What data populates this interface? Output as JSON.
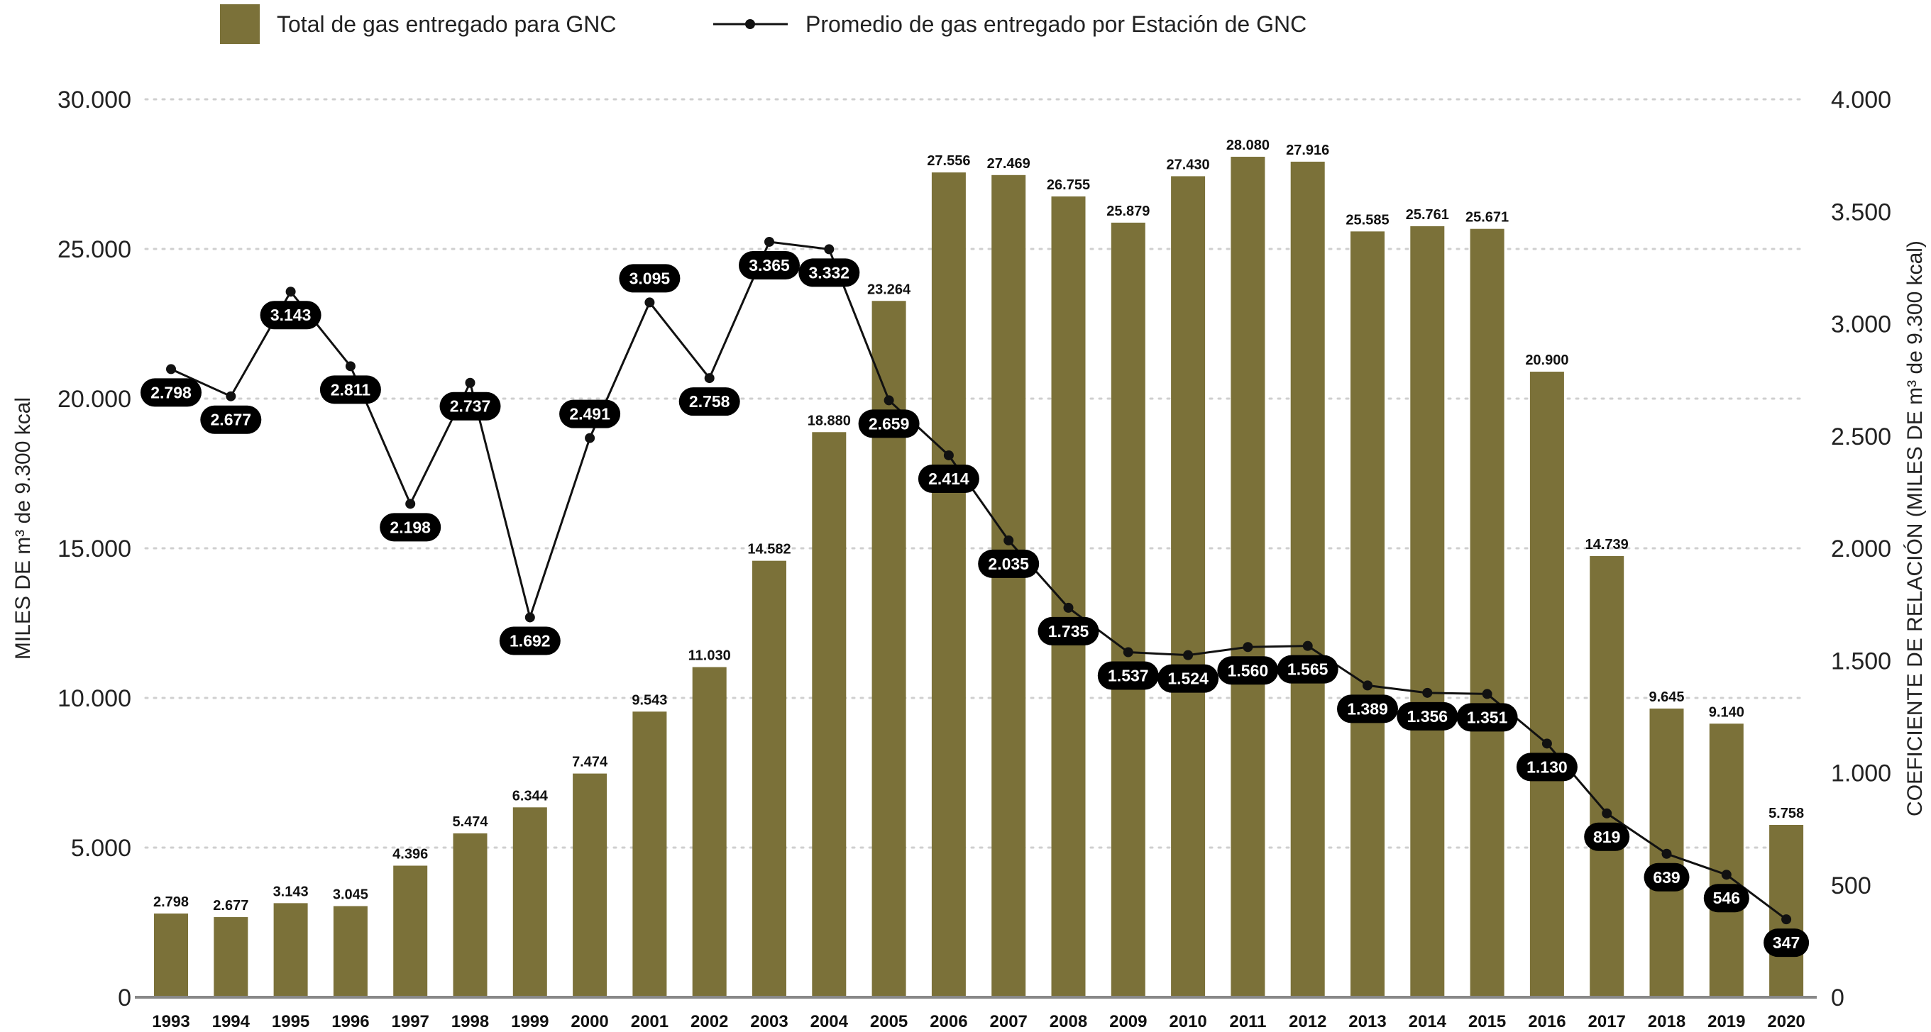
{
  "colors": {
    "bar": "#7b7139",
    "line": "#111111",
    "pill": "#000000",
    "grid": "#cfcfcf",
    "axis": "#888888"
  },
  "legend": {
    "bars_label": "Total de gas entregado para GNC",
    "line_label": "Promedio de gas entregado por Estación de GNC",
    "placement": "top"
  },
  "chart_data": {
    "type": "bar",
    "categories": [
      "1993",
      "1994",
      "1995",
      "1996",
      "1997",
      "1998",
      "1999",
      "2000",
      "2001",
      "2002",
      "2003",
      "2004",
      "2005",
      "2006",
      "2007",
      "2008",
      "2009",
      "2010",
      "2011",
      "2012",
      "2013",
      "2014",
      "2015",
      "2016",
      "2017",
      "2018",
      "2019",
      "2020"
    ],
    "series": [
      {
        "name": "Total de gas entregado para GNC",
        "type": "bar",
        "axis": "left",
        "values": [
          2798,
          2677,
          3143,
          3045,
          4396,
          5474,
          6344,
          7474,
          9543,
          11030,
          14582,
          18880,
          23264,
          27556,
          27469,
          26755,
          25879,
          27430,
          28080,
          27916,
          25585,
          25761,
          25671,
          20900,
          14739,
          9645,
          9140,
          5758
        ],
        "labels": [
          "2.798",
          "2.677",
          "3.143",
          "3.045",
          "4.396",
          "5.474",
          "6.344",
          "7.474",
          "9.543",
          "11.030",
          "14.582",
          "18.880",
          "23.264",
          "27.556",
          "27.469",
          "26.755",
          "25.879",
          "27.430",
          "28.080",
          "27.916",
          "25.585",
          "25.761",
          "25.671",
          "20.900",
          "14.739",
          "9.645",
          "9.140",
          "5.758"
        ]
      },
      {
        "name": "Promedio de gas entregado por Estación de GNC",
        "type": "line",
        "axis": "right",
        "values": [
          2798,
          2677,
          3143,
          2811,
          2198,
          2737,
          1692,
          2491,
          3095,
          2758,
          3365,
          3332,
          2659,
          2414,
          2035,
          1735,
          1537,
          1524,
          1560,
          1565,
          1389,
          1356,
          1351,
          1130,
          819,
          639,
          546,
          347
        ],
        "labels": [
          "2.798",
          "2.677",
          "3.143",
          "2.811",
          "2.198",
          "2.737",
          "1.692",
          "2.491",
          "3.095",
          "2.758",
          "3.365",
          "3.332",
          "2.659",
          "2.414",
          "2.035",
          "1.735",
          "1.537",
          "1.524",
          "1.560",
          "1.565",
          "1.389",
          "1.356",
          "1.351",
          "1.130",
          "819",
          "639",
          "546",
          "347"
        ],
        "label_side": [
          "below",
          "below",
          "below",
          "below",
          "below",
          "below",
          "below",
          "above",
          "above",
          "below",
          "below",
          "below",
          "below",
          "below",
          "below",
          "below",
          "below",
          "below",
          "below",
          "below",
          "below",
          "below",
          "below",
          "below",
          "below",
          "below",
          "below",
          "below"
        ]
      }
    ],
    "y_left": {
      "label": "MILES DE m³ de 9.300 kcal",
      "range": [
        0,
        30000
      ],
      "ticks": [
        0,
        5000,
        10000,
        15000,
        20000,
        25000,
        30000
      ],
      "tick_labels": [
        "0",
        "5.000",
        "10.000",
        "15.000",
        "20.000",
        "25.000",
        "30.000"
      ]
    },
    "y_right": {
      "label": "COEFICIENTE DE RELACIÓN (MILES DE m³ de 9.300 kcal)",
      "range": [
        0,
        4000
      ],
      "ticks": [
        0,
        500,
        1000,
        1500,
        2000,
        2500,
        3000,
        3500,
        4000
      ],
      "tick_labels": [
        "0",
        "500",
        "1.000",
        "1.500",
        "2.000",
        "2.500",
        "3.000",
        "3.500",
        "4.000"
      ]
    },
    "grid": true
  }
}
